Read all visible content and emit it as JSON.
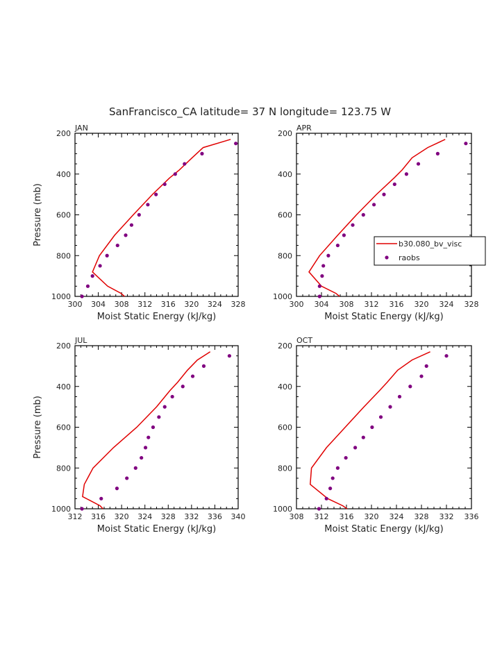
{
  "title": "SanFrancisco_CA  latitude= 37 N longitude= 123.75 W",
  "legend": {
    "model_label": "b30.080_bv_visc",
    "obs_label": "raobs",
    "model_color": "#e00000",
    "obs_color": "#800080"
  },
  "chart_data": [
    {
      "type": "line",
      "panel": "JAN",
      "xlabel": "Moist Static Energy (kJ/kg)",
      "ylabel": "Pressure (mb)",
      "xlim": [
        300,
        328
      ],
      "ylim": [
        1000,
        200
      ],
      "xticks": [
        300,
        304,
        308,
        312,
        316,
        320,
        324,
        328
      ],
      "yticks": [
        200,
        400,
        600,
        800,
        1000
      ],
      "series": [
        {
          "name": "b30.080_bv_visc",
          "kind": "line",
          "x": [
            308.5,
            307.9,
            305.6,
            303.0,
            304.2,
            306.8,
            310.0,
            313.3,
            316.2,
            317.9,
            320.1,
            322.0,
            326.7
          ],
          "y": [
            1000,
            985,
            950,
            880,
            800,
            700,
            600,
            500,
            420,
            380,
            320,
            270,
            230
          ]
        },
        {
          "name": "raobs",
          "kind": "points",
          "x": [
            301.2,
            302.2,
            303.0,
            304.3,
            305.5,
            307.3,
            308.7,
            309.7,
            311.0,
            312.5,
            313.9,
            315.4,
            317.2,
            318.8,
            321.8,
            327.6
          ],
          "y": [
            1000,
            950,
            900,
            850,
            800,
            750,
            700,
            650,
            600,
            550,
            500,
            450,
            400,
            350,
            300,
            250
          ]
        }
      ]
    },
    {
      "type": "line",
      "panel": "APR",
      "xlabel": "Moist Static Energy (kJ/kg)",
      "ylabel": "",
      "xlim": [
        300,
        328
      ],
      "ylim": [
        1000,
        200
      ],
      "xticks": [
        300,
        304,
        308,
        312,
        316,
        320,
        324,
        328
      ],
      "yticks": [
        200,
        400,
        600,
        800,
        1000
      ],
      "series": [
        {
          "name": "b30.080_bv_visc",
          "kind": "line",
          "x": [
            306.9,
            306.3,
            304.0,
            302.0,
            303.7,
            306.6,
            309.6,
            312.8,
            315.6,
            316.9,
            318.5,
            321.0,
            323.8
          ],
          "y": [
            1000,
            985,
            950,
            880,
            800,
            700,
            600,
            500,
            420,
            380,
            320,
            270,
            230
          ]
        },
        {
          "name": "raobs",
          "kind": "points",
          "x": [
            303.7,
            303.7,
            304.1,
            304.3,
            305.1,
            306.6,
            307.6,
            309.0,
            310.7,
            312.4,
            314.0,
            315.7,
            317.6,
            319.5,
            322.6,
            327.1
          ],
          "y": [
            1000,
            950,
            900,
            850,
            800,
            750,
            700,
            650,
            600,
            550,
            500,
            450,
            400,
            350,
            300,
            250
          ]
        }
      ]
    },
    {
      "type": "line",
      "panel": "JUL",
      "xlabel": "Moist Static Energy (kJ/kg)",
      "ylabel": "Pressure (mb)",
      "xlim": [
        312,
        340
      ],
      "ylim": [
        1000,
        200
      ],
      "xticks": [
        312,
        316,
        320,
        324,
        328,
        332,
        336,
        340
      ],
      "yticks": [
        200,
        400,
        600,
        800,
        1000
      ],
      "series": [
        {
          "name": "b30.080_bv_visc",
          "kind": "line",
          "x": [
            316.8,
            316.3,
            313.3,
            313.6,
            315.1,
            318.6,
            322.6,
            326.0,
            328.3,
            329.6,
            331.3,
            333.0,
            335.2
          ],
          "y": [
            1000,
            985,
            940,
            880,
            800,
            700,
            600,
            500,
            420,
            380,
            320,
            270,
            230
          ]
        },
        {
          "name": "raobs",
          "kind": "points",
          "x": [
            313.2,
            316.5,
            319.2,
            320.9,
            322.4,
            323.4,
            324.1,
            324.6,
            325.4,
            326.4,
            327.4,
            328.7,
            330.5,
            332.2,
            334.1,
            338.5
          ],
          "y": [
            1000,
            950,
            900,
            850,
            800,
            750,
            700,
            650,
            600,
            550,
            500,
            450,
            400,
            350,
            300,
            250
          ]
        }
      ]
    },
    {
      "type": "line",
      "panel": "OCT",
      "xlabel": "Moist Static Energy (kJ/kg)",
      "ylabel": "",
      "xlim": [
        308,
        336
      ],
      "ylim": [
        1000,
        200
      ],
      "xticks": [
        308,
        312,
        316,
        320,
        324,
        328,
        332,
        336
      ],
      "yticks": [
        200,
        400,
        600,
        800,
        1000
      ],
      "series": [
        {
          "name": "b30.080_bv_visc",
          "kind": "line",
          "x": [
            316.1,
            315.4,
            313.0,
            310.2,
            310.4,
            312.8,
            315.8,
            318.8,
            321.3,
            322.5,
            324.2,
            326.5,
            329.4
          ],
          "y": [
            1000,
            985,
            950,
            880,
            800,
            700,
            600,
            500,
            420,
            380,
            320,
            270,
            230
          ]
        },
        {
          "name": "raobs",
          "kind": "points",
          "x": [
            311.6,
            312.8,
            313.4,
            313.8,
            314.6,
            315.9,
            317.4,
            318.7,
            320.1,
            321.5,
            323.0,
            324.5,
            326.2,
            328.0,
            328.8,
            332.0
          ],
          "y": [
            1000,
            950,
            900,
            850,
            800,
            750,
            700,
            650,
            600,
            550,
            500,
            450,
            400,
            350,
            300,
            250
          ]
        }
      ]
    }
  ]
}
